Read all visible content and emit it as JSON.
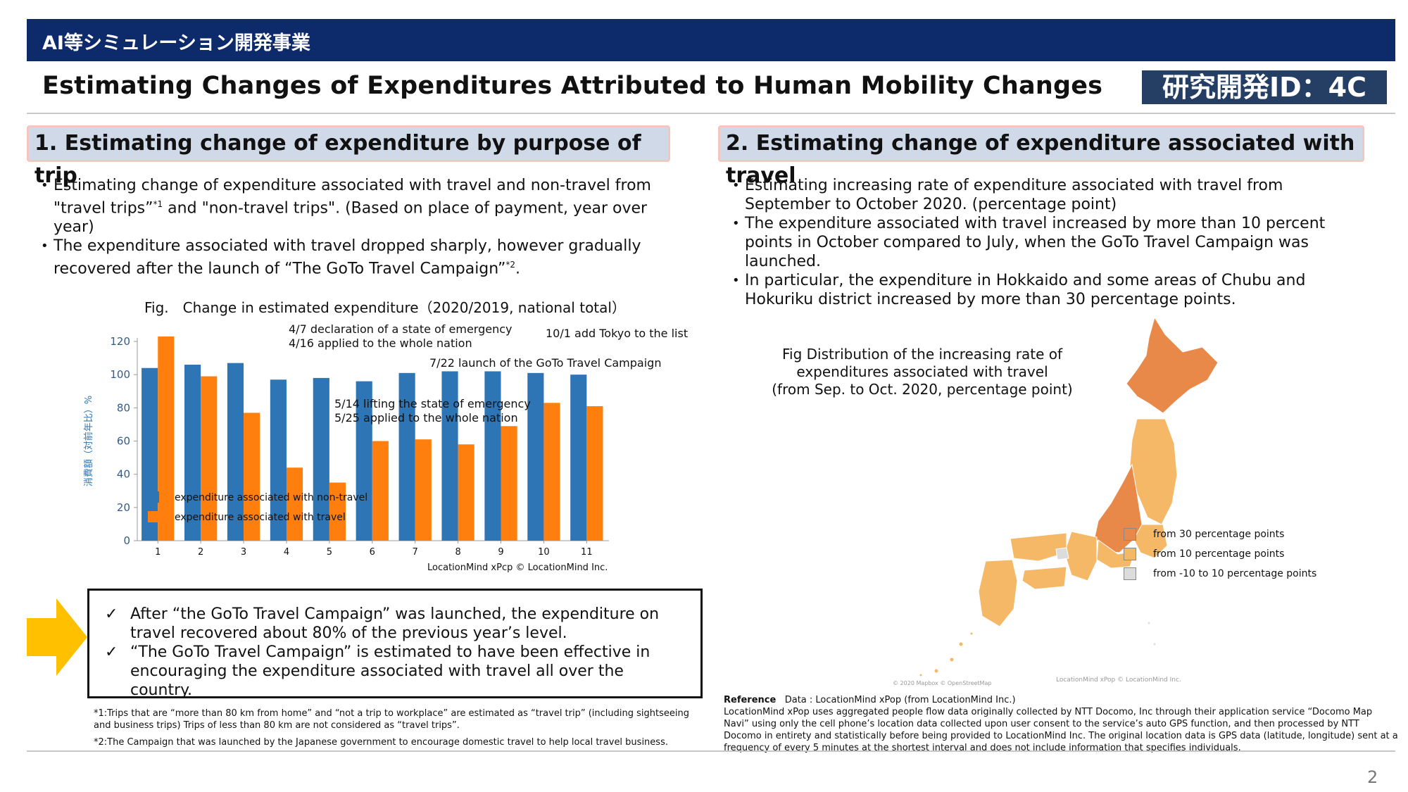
{
  "header": {
    "program": "AI等シミュレーション開発事業",
    "title": "Estimating Changes of Expenditures Attributed to Human Mobility Changes",
    "id_badge": "研究開発ID：4C"
  },
  "section1": {
    "heading": "1. Estimating change of expenditure by purpose of trip",
    "bullet1_pre": "Estimating change of expenditure associated with travel and non-travel from \"travel trips”",
    "bullet1_sup": "*1",
    "bullet1_post": " and \"non-travel trips\". (Based on place of payment, year over year)",
    "bullet2_pre": "The expenditure associated with travel dropped sharply, however gradually recovered after the launch of “The GoTo Travel Campaign”",
    "bullet2_sup": "*2",
    "bullet2_post": ".",
    "fig_caption": "Fig.　Change in estimated expenditure（2020/2019, national total）",
    "summary1": "After “the GoTo Travel Campaign” was launched, the expenditure on travel recovered about 80% of the previous year’s level.",
    "summary2": "“The GoTo Travel Campaign” is estimated to have been effective in encouraging the expenditure associated with travel all over the country.",
    "check_mark": "✓",
    "footnote1": "*1:Trips that are “more than 80 km from home” and “not a trip to workplace” are estimated as “travel trip” (including sightseeing and business trips) Trips of less than 80 km are not considered as “travel trips”.",
    "footnote2": "*2:The Campaign that was launched by the Japanese government to encourage domestic travel to help local travel business."
  },
  "chart_data": {
    "type": "bar",
    "ylabel": "消費額（対前年比）%",
    "ylim": [
      0,
      120
    ],
    "yticks": [
      0,
      20,
      40,
      60,
      80,
      100,
      120
    ],
    "categories": [
      "1",
      "2",
      "3",
      "4",
      "5",
      "6",
      "7",
      "8",
      "9",
      "10",
      "11"
    ],
    "series": [
      {
        "name": "expenditure associated with non-travel",
        "color": "#2e75b6",
        "values": [
          104,
          106,
          107,
          97,
          98,
          96,
          101,
          102,
          102,
          101,
          100
        ]
      },
      {
        "name": "expenditure associated with travel",
        "color": "#ff7f0e",
        "values": [
          123,
          99,
          77,
          44,
          35,
          60,
          61,
          58,
          69,
          83,
          81
        ]
      }
    ],
    "annotations": [
      "4/7  declaration of a state of emergency",
      "4/16 applied to the whole nation",
      "10/1  add Tokyo to the list",
      "7/22 launch of the GoTo Travel Campaign",
      "5/14 lifting the state of emergency",
      "5/25  applied to the whole nation"
    ],
    "credit": "LocationMind xPcp © LocationMind Inc.",
    "legend_position": "bottom-left"
  },
  "section2": {
    "heading": "2. Estimating change of expenditure associated with travel",
    "bullet1": "Estimating increasing rate of expenditure associated with travel from September to October 2020. (percentage point)",
    "bullet2": "The expenditure associated with travel increased by more than 10 percent points in October compared to July, when the GoTo Travel Campaign was launched.",
    "bullet3": "In particular, the expenditure in Hokkaido and some areas of Chubu and Hokuriku district increased by more than 30 percentage points.",
    "map_caption_1": "Fig Distribution of the increasing rate of",
    "map_caption_2": "expenditures associated with travel",
    "map_caption_3": "(from Sep. to Oct. 2020, percentage point)",
    "legend": [
      {
        "label": "from 30 percentage points",
        "color": "#e8894a"
      },
      {
        "label": "from 10 percentage points",
        "color": "#f5b867"
      },
      {
        "label": "from -10 to 10  percentage points",
        "color": "#dcdcdc"
      }
    ],
    "map_credit_left": "© 2020 Mapbox © OpenStreetMap",
    "map_credit_right": "LocationMind xPop © LocationMind Inc.",
    "reference_label": "Reference",
    "reference_line1": "Data : LocationMind xPop (from LocationMind Inc.)",
    "reference_body": "LocationMind xPop uses aggregated people flow data originally collected by NTT Docomo, Inc through their application service “Docomo Map Navi” using only the cell phone’s location data collected upon user consent to the service’s auto GPS function, and then processed by NTT Docomo in entirety and statistically before being provided to LocationMind Inc. The original location data is GPS data (latitude, longitude) sent at a frequency of every 5 minutes at the shortest interval and does not include information that specifies individuals."
  },
  "page_number": "2"
}
